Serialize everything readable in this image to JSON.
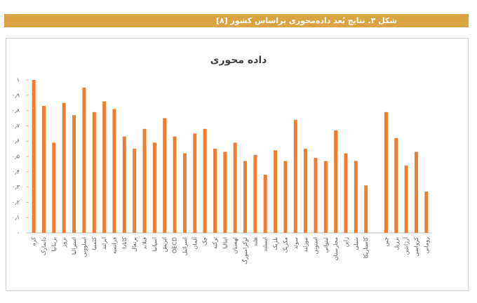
{
  "header": {
    "title": "شکل ۳. نتایج بُعد داده‌محوری براساس کشور [۸]"
  },
  "chart_data": {
    "type": "bar",
    "title": "داده محوری",
    "color": "#ed7d31",
    "grid": false,
    "categories": [
      "کره",
      "دانمارک",
      "بریتانیا",
      "نروژ",
      "استرالیا",
      "اسلوونی",
      "کلمبیا",
      "ایرلند",
      "فرانسه",
      "کانادا",
      "پرتغال",
      "فنلاند",
      "اسپانیا",
      "اتریش",
      "OECD",
      "اسرائیل",
      "آلمان",
      "چک",
      "ترکیه",
      "ایتالیا",
      "لهستان",
      "لوکزامبورگ",
      "هلند",
      "ایسلند",
      "بلژیک",
      "مکزیک",
      "سوئد",
      "نیوزلند",
      "استونی",
      "لیتوانی",
      "مجارستان",
      "ژاپن",
      "شیلی",
      "کاستاریکا",
      null,
      "چین",
      "برزیل",
      "آرژانتین",
      "کرواسی",
      "رومانی"
    ],
    "values": [
      1.0,
      0.83,
      0.59,
      0.85,
      0.77,
      0.95,
      0.79,
      0.86,
      0.81,
      0.63,
      0.55,
      0.68,
      0.59,
      0.75,
      0.63,
      0.52,
      0.65,
      0.68,
      0.55,
      0.53,
      0.59,
      0.47,
      0.51,
      0.38,
      0.54,
      0.47,
      0.74,
      0.55,
      0.49,
      0.47,
      0.67,
      0.52,
      0.47,
      0.31,
      null,
      0.79,
      0.62,
      0.44,
      0.53,
      0.27
    ],
    "ylim": [
      0,
      1
    ],
    "yticks": [
      {
        "value": 0,
        "label": "۰"
      },
      {
        "value": 0.1,
        "label": "۰٫۱"
      },
      {
        "value": 0.2,
        "label": "۰٫۲"
      },
      {
        "value": 0.3,
        "label": "۰٫۳"
      },
      {
        "value": 0.4,
        "label": "۰٫۴"
      },
      {
        "value": 0.5,
        "label": "۰٫۵"
      },
      {
        "value": 0.6,
        "label": "۰٫۶"
      },
      {
        "value": 0.7,
        "label": "۰٫۷"
      },
      {
        "value": 0.8,
        "label": "۰٫۸"
      },
      {
        "value": 0.9,
        "label": "۰٫۹"
      },
      {
        "value": 1,
        "label": "۱"
      }
    ]
  }
}
